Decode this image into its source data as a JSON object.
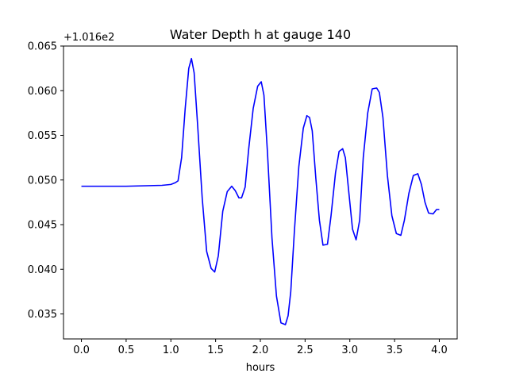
{
  "chart_data": {
    "type": "line",
    "title": "Water Depth h at gauge 140",
    "xlabel": "hours",
    "ylabel": "",
    "y_offset_label": "+1.016e2",
    "xlim": [
      -0.2,
      4.2
    ],
    "ylim": [
      0.0322,
      0.065
    ],
    "xticks": [
      0.0,
      0.5,
      1.0,
      1.5,
      2.0,
      2.5,
      3.0,
      3.5,
      4.0
    ],
    "xtick_labels": [
      "0.0",
      "0.5",
      "1.0",
      "1.5",
      "2.0",
      "2.5",
      "3.0",
      "3.5",
      "4.0"
    ],
    "yticks": [
      0.035,
      0.04,
      0.045,
      0.05,
      0.055,
      0.06,
      0.065
    ],
    "ytick_labels": [
      "0.035",
      "0.040",
      "0.045",
      "0.050",
      "0.055",
      "0.060",
      "0.065"
    ],
    "grid": false,
    "series": [
      {
        "color": "#0000ff",
        "x": [
          0.0,
          0.5,
          0.9,
          1.0,
          1.05,
          1.08,
          1.12,
          1.16,
          1.2,
          1.23,
          1.26,
          1.3,
          1.35,
          1.4,
          1.45,
          1.49,
          1.53,
          1.58,
          1.63,
          1.68,
          1.72,
          1.76,
          1.79,
          1.83,
          1.87,
          1.92,
          1.97,
          2.01,
          2.04,
          2.08,
          2.13,
          2.18,
          2.23,
          2.28,
          2.31,
          2.34,
          2.38,
          2.43,
          2.48,
          2.52,
          2.55,
          2.58,
          2.62,
          2.66,
          2.7,
          2.75,
          2.79,
          2.84,
          2.88,
          2.92,
          2.95,
          2.99,
          3.03,
          3.07,
          3.11,
          3.15,
          3.2,
          3.25,
          3.3,
          3.33,
          3.37,
          3.42,
          3.47,
          3.52,
          3.57,
          3.61,
          3.66,
          3.71,
          3.76,
          3.8,
          3.84,
          3.88,
          3.93,
          3.97,
          4.0
        ],
        "y": [
          0.0493,
          0.0493,
          0.0494,
          0.0495,
          0.0497,
          0.0499,
          0.0525,
          0.058,
          0.0625,
          0.0636,
          0.062,
          0.056,
          0.048,
          0.042,
          0.0401,
          0.0397,
          0.0415,
          0.0465,
          0.0487,
          0.0493,
          0.0488,
          0.048,
          0.048,
          0.0492,
          0.0535,
          0.058,
          0.0605,
          0.061,
          0.0595,
          0.053,
          0.0435,
          0.037,
          0.034,
          0.0338,
          0.0348,
          0.0375,
          0.0442,
          0.0515,
          0.0558,
          0.0572,
          0.057,
          0.0555,
          0.0502,
          0.0455,
          0.0427,
          0.0428,
          0.046,
          0.0508,
          0.0532,
          0.0535,
          0.0525,
          0.0485,
          0.0445,
          0.0433,
          0.0455,
          0.0525,
          0.0575,
          0.0602,
          0.0603,
          0.0598,
          0.057,
          0.0505,
          0.046,
          0.044,
          0.0438,
          0.0455,
          0.0485,
          0.0505,
          0.0507,
          0.0495,
          0.0475,
          0.0463,
          0.0462,
          0.0467,
          0.0467
        ]
      }
    ]
  }
}
